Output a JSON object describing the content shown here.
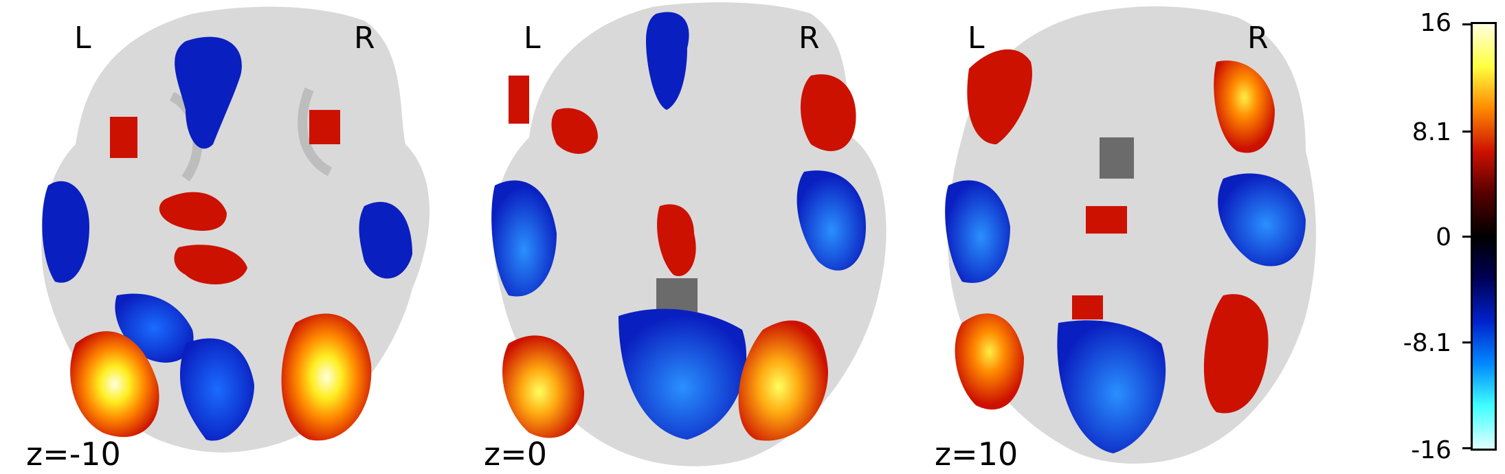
{
  "slices": [
    {
      "left_label": "L",
      "right_label": "R",
      "coord_label": "z=-10"
    },
    {
      "left_label": "L",
      "right_label": "R",
      "coord_label": "z=0"
    },
    {
      "left_label": "L",
      "right_label": "R",
      "coord_label": "z=10"
    }
  ],
  "colorbar": {
    "ticks": [
      "16",
      "8.1",
      "0",
      "-8.1",
      "-16"
    ],
    "colors": {
      "top": "#ffffe0",
      "yellow": "#ffff40",
      "orange": "#ff8800",
      "red": "#cc1100",
      "dark_red": "#550000",
      "zero": "#000000",
      "dark_blue": "#000055",
      "blue": "#0022cc",
      "light_blue": "#0088ff",
      "cyan": "#40ffff",
      "bottom": "#e0ffff"
    }
  },
  "colors": {
    "brain_gray": "#d9d9d9",
    "brain_dark": "#8a8a8a",
    "positive": "#cc1100",
    "negative": "#0a1fc0"
  }
}
